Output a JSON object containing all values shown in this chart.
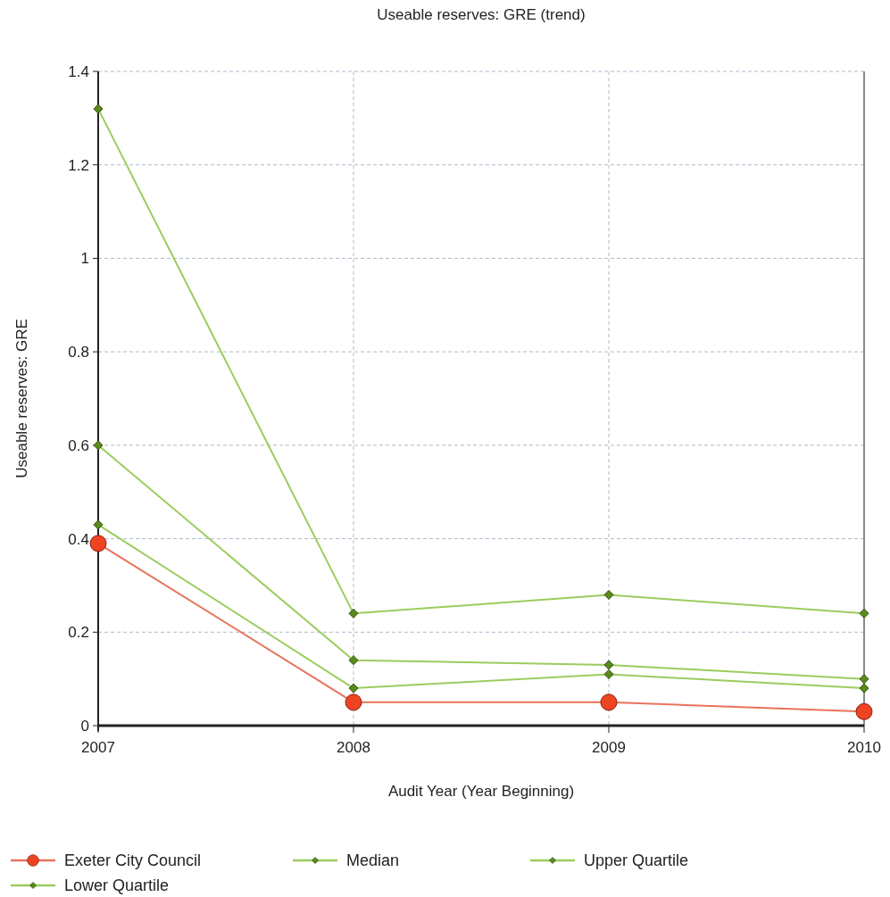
{
  "chart_data": {
    "type": "line",
    "title": "Useable reserves: GRE (trend)",
    "xlabel": "Audit Year (Year Beginning)",
    "ylabel": "Useable reserves: GRE",
    "categories": [
      "2007",
      "2008",
      "2009",
      "2010"
    ],
    "series": [
      {
        "name": "Exeter City Council",
        "color": "#e8735a",
        "marker": "circle",
        "values": [
          0.39,
          0.05,
          0.05,
          0.03
        ]
      },
      {
        "name": "Median",
        "color": "#9ccc5e",
        "marker": "diamond",
        "values": [
          0.6,
          0.14,
          0.13,
          0.1
        ]
      },
      {
        "name": "Upper Quartile",
        "color": "#9ccc5e",
        "marker": "diamond",
        "values": [
          1.32,
          0.24,
          0.28,
          0.24
        ]
      },
      {
        "name": "Lower Quartile",
        "color": "#9ccc5e",
        "marker": "diamond",
        "values": [
          0.43,
          0.08,
          0.11,
          0.08
        ]
      }
    ],
    "ylim": [
      0,
      1.4
    ],
    "yticks": [
      0,
      0.2,
      0.4,
      0.6,
      0.8,
      1,
      1.2,
      1.4
    ],
    "grid": true,
    "legend": "bottom"
  }
}
